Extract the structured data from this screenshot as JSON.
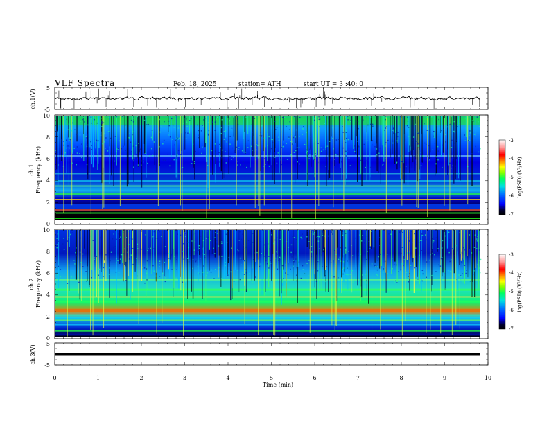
{
  "header": {
    "title": "VLF  Spectra",
    "date": "Feb. 18, 2025",
    "station": "station= ATH",
    "start": "start  UT  =   3  :40: 0"
  },
  "chart_data": [
    {
      "type": "line",
      "ylabel": "ch.1(V)",
      "ylim": [
        -5,
        5
      ],
      "yticks": [
        "5",
        "-5"
      ],
      "xlim": [
        0,
        10
      ]
    },
    {
      "type": "heatmap",
      "ylabel_top": "ch.1",
      "ylabel": "Frequency  (kHz)",
      "ylim": [
        0,
        10
      ],
      "yticks": [
        "10",
        "8",
        "6",
        "4",
        "2",
        "0"
      ],
      "xlim": [
        0,
        10
      ],
      "colorbar": {
        "label": "log(PSD) (V²/Hz)",
        "ticks": [
          "-3",
          "-4",
          "-5",
          "-6",
          "-7"
        ],
        "range": [
          -7,
          -3
        ]
      }
    },
    {
      "type": "heatmap",
      "ylabel_top": "ch.2",
      "ylabel": "Frequency  (kHz)",
      "ylim": [
        0,
        10
      ],
      "yticks": [
        "10",
        "8",
        "6",
        "4",
        "2",
        "0"
      ],
      "xlim": [
        0,
        10
      ],
      "colorbar": {
        "label": "log(PSD) (V²/Hz)",
        "ticks": [
          "-3",
          "-4",
          "-5",
          "-6",
          "-7"
        ],
        "range": [
          -7,
          -3
        ]
      }
    },
    {
      "type": "line",
      "ylabel": "ch.3(V)",
      "ylim": [
        -5,
        5
      ],
      "yticks": [
        "5",
        "-5"
      ],
      "xlim": [
        0,
        10
      ]
    }
  ],
  "xaxis": {
    "label": "Time  (min)",
    "ticks": [
      "0",
      "1",
      "2",
      "3",
      "4",
      "5",
      "6",
      "7",
      "8",
      "9",
      "10"
    ]
  }
}
